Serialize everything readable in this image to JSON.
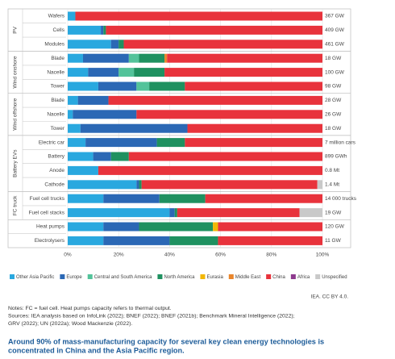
{
  "chart_data": {
    "type": "bar",
    "orientation": "horizontal",
    "stacked": true,
    "groups": [
      {
        "name": "PV",
        "categories": [
          "Wafers",
          "Cells",
          "Modules"
        ]
      },
      {
        "name": "Wind onshore",
        "categories": [
          "Blade",
          "Nacelle",
          "Tower"
        ]
      },
      {
        "name": "Wind offshore",
        "categories": [
          "Blade",
          "Nacelle",
          "Tower"
        ]
      },
      {
        "name": "Battery EVs",
        "categories": [
          "Electric car",
          "Battery",
          "Anode",
          "Cathode"
        ]
      },
      {
        "name": "FC truck",
        "categories": [
          "Fuel cell trucks",
          "Fuel cell stacks"
        ]
      },
      {
        "name": null,
        "categories": [
          "Heat pumps",
          "Electrolysers"
        ]
      }
    ],
    "totals": [
      "367 GW",
      "409 GW",
      "461 GW",
      "18 GW",
      "100 GW",
      "98 GW",
      "28 GW",
      "26 GW",
      "18 GW",
      "7 million cars",
      "899 GWh",
      "0.8 Mt",
      "1.4 Mt",
      "14 000 trucks",
      "19 GW",
      "120 GW",
      "11 GW"
    ],
    "series": [
      {
        "name": "Other Asia Pacific",
        "color": "#29a8df",
        "values": [
          3,
          13,
          17,
          6,
          8,
          12,
          4,
          2,
          5,
          7,
          10,
          12,
          27,
          14,
          40,
          14,
          14
        ]
      },
      {
        "name": "Europe",
        "color": "#2b68b5",
        "values": [
          0,
          1,
          3,
          18,
          12,
          15,
          12,
          25,
          42,
          28,
          7,
          0,
          1,
          22,
          2,
          14,
          26
        ]
      },
      {
        "name": "Central and South America",
        "color": "#53c39a",
        "values": [
          0,
          0,
          0,
          4,
          6,
          5,
          0,
          0,
          0,
          0,
          0,
          0,
          0,
          0,
          0,
          0,
          0
        ]
      },
      {
        "name": "North America",
        "color": "#1f9160",
        "values": [
          0,
          1,
          2,
          10,
          12,
          14,
          0,
          0,
          0,
          11,
          7,
          0,
          1,
          18,
          1,
          29,
          19
        ]
      },
      {
        "name": "Eurasia",
        "color": "#f2b705",
        "values": [
          0,
          0,
          0,
          0,
          0,
          0,
          0,
          0,
          0,
          0,
          0,
          0,
          0,
          0,
          0,
          2,
          0
        ]
      },
      {
        "name": "Middle East",
        "color": "#e9852b",
        "values": [
          0,
          0,
          0,
          1,
          0,
          0,
          0,
          0,
          0,
          0,
          0,
          0,
          0,
          0,
          0,
          0,
          0
        ]
      },
      {
        "name": "China",
        "color": "#e8333c",
        "values": [
          97,
          85,
          78,
          61,
          62,
          54,
          84,
          73,
          53,
          54,
          76,
          88,
          69,
          46,
          48,
          41,
          41
        ]
      },
      {
        "name": "Africa",
        "color": "#8e3a8e",
        "values": [
          0,
          0,
          0,
          0,
          0,
          0,
          0,
          0,
          0,
          0,
          0,
          0,
          0,
          0,
          0,
          0,
          0
        ]
      },
      {
        "name": "Unspecified",
        "color": "#c9c9c9",
        "values": [
          0,
          0,
          0,
          0,
          0,
          0,
          0,
          0,
          0,
          0,
          0,
          0,
          2,
          0,
          9,
          0,
          0
        ]
      }
    ],
    "xlim": [
      0,
      100
    ],
    "xticks": [
      {
        "value": 0,
        "label": "0%"
      },
      {
        "value": 20,
        "label": "20%"
      },
      {
        "value": 40,
        "label": "40%"
      },
      {
        "value": 60,
        "label": "60%"
      },
      {
        "value": 80,
        "label": "80%"
      },
      {
        "value": 100,
        "label": "100%"
      }
    ],
    "credit": "IEA. CC BY 4.0.",
    "notes": [
      "Notes: FC = fuel cell. Heat pumps capacity refers to thermal output.",
      "Sources: IEA analysis based on InfoLink (2022); BNEF (2022); BNEF (2021b); Benchmark Mineral Intelligence (2022);",
      "GRV (2022); UN (2022a); Wood Mackenzie (2022)."
    ],
    "caption": [
      "Around 90% of mass-manufacturing capacity for several key clean energy technologies is",
      "concentrated in China and the Asia Pacific region."
    ]
  }
}
